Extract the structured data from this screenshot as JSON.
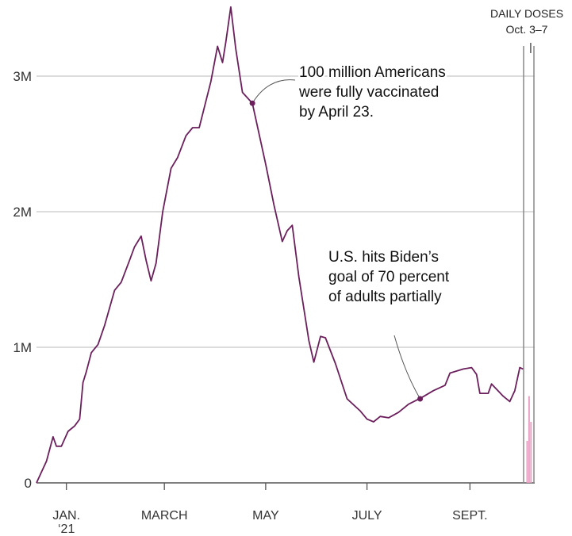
{
  "chart_data": {
    "type": "line",
    "title": "",
    "xlabel": "",
    "ylabel": "",
    "ylim": [
      0,
      3500000
    ],
    "y_ticks": [
      {
        "value": 0,
        "label": "0"
      },
      {
        "value": 1000000,
        "label": "1M"
      },
      {
        "value": 2000000,
        "label": "2M"
      },
      {
        "value": 3000000,
        "label": "3M"
      }
    ],
    "x_ticks": [
      {
        "date": "2021-01-01",
        "label": "JAN.",
        "sublabel": "‘21"
      },
      {
        "date": "2021-03-01",
        "label": "MARCH",
        "sublabel": ""
      },
      {
        "date": "2021-05-01",
        "label": "MAY",
        "sublabel": ""
      },
      {
        "date": "2021-07-01",
        "label": "JULY",
        "sublabel": ""
      },
      {
        "date": "2021-09-01",
        "label": "SEPT.",
        "sublabel": ""
      }
    ],
    "xlim": [
      "2020-12-14",
      "2021-10-10"
    ],
    "grid": true,
    "line_color": "#6b1f5c",
    "bar_color": "#e8a3c4",
    "series": [
      {
        "points": [
          [
            "2020-12-14",
            0
          ],
          [
            "2020-12-17",
            80000
          ],
          [
            "2020-12-20",
            160000
          ],
          [
            "2020-12-24",
            340000
          ],
          [
            "2020-12-26",
            270000
          ],
          [
            "2020-12-29",
            270000
          ],
          [
            "2021-01-02",
            380000
          ],
          [
            "2021-01-06",
            420000
          ],
          [
            "2021-01-09",
            470000
          ],
          [
            "2021-01-11",
            740000
          ],
          [
            "2021-01-13",
            820000
          ],
          [
            "2021-01-16",
            960000
          ],
          [
            "2021-01-20",
            1020000
          ],
          [
            "2021-01-24",
            1160000
          ],
          [
            "2021-01-30",
            1420000
          ],
          [
            "2021-02-03",
            1480000
          ],
          [
            "2021-02-08",
            1640000
          ],
          [
            "2021-02-11",
            1740000
          ],
          [
            "2021-02-15",
            1820000
          ],
          [
            "2021-02-18",
            1640000
          ],
          [
            "2021-02-21",
            1490000
          ],
          [
            "2021-02-24",
            1620000
          ],
          [
            "2021-02-28",
            2000000
          ],
          [
            "2021-03-05",
            2320000
          ],
          [
            "2021-03-09",
            2400000
          ],
          [
            "2021-03-14",
            2560000
          ],
          [
            "2021-03-18",
            2620000
          ],
          [
            "2021-03-22",
            2620000
          ],
          [
            "2021-03-29",
            2960000
          ],
          [
            "2021-04-02",
            3220000
          ],
          [
            "2021-04-05",
            3100000
          ],
          [
            "2021-04-07",
            3250000
          ],
          [
            "2021-04-10",
            3510000
          ],
          [
            "2021-04-13",
            3200000
          ],
          [
            "2021-04-17",
            2880000
          ],
          [
            "2021-04-23",
            2800000
          ],
          [
            "2021-05-01",
            2350000
          ],
          [
            "2021-05-06",
            2050000
          ],
          [
            "2021-05-11",
            1780000
          ],
          [
            "2021-05-14",
            1860000
          ],
          [
            "2021-05-17",
            1900000
          ],
          [
            "2021-05-21",
            1520000
          ],
          [
            "2021-05-27",
            1050000
          ],
          [
            "2021-05-30",
            890000
          ],
          [
            "2021-06-03",
            1080000
          ],
          [
            "2021-06-06",
            1070000
          ],
          [
            "2021-06-12",
            880000
          ],
          [
            "2021-06-19",
            620000
          ],
          [
            "2021-06-27",
            530000
          ],
          [
            "2021-07-01",
            470000
          ],
          [
            "2021-07-05",
            450000
          ],
          [
            "2021-07-09",
            490000
          ],
          [
            "2021-07-14",
            480000
          ],
          [
            "2021-07-20",
            520000
          ],
          [
            "2021-07-26",
            580000
          ],
          [
            "2021-08-03",
            630000
          ],
          [
            "2021-08-10",
            680000
          ],
          [
            "2021-08-17",
            720000
          ],
          [
            "2021-08-20",
            810000
          ],
          [
            "2021-08-28",
            840000
          ],
          [
            "2021-09-02",
            850000
          ],
          [
            "2021-09-05",
            800000
          ],
          [
            "2021-09-07",
            660000
          ],
          [
            "2021-09-12",
            660000
          ],
          [
            "2021-09-14",
            730000
          ],
          [
            "2021-09-21",
            640000
          ],
          [
            "2021-09-25",
            600000
          ],
          [
            "2021-09-28",
            680000
          ],
          [
            "2021-10-01",
            850000
          ],
          [
            "2021-10-03",
            840000
          ]
        ]
      }
    ],
    "daily_doses_panel": {
      "title_line1": "DAILY DOSES",
      "title_line2": "Oct. 3–7",
      "ticks": [
        "|"
      ],
      "bars": [
        {
          "date": "2021-10-03",
          "value": 310000
        },
        {
          "date": "2021-10-04",
          "value": 640000
        },
        {
          "date": "2021-10-05",
          "value": 450000
        },
        {
          "date": "2021-10-06",
          "value": 0
        },
        {
          "date": "2021-10-07",
          "value": 0
        }
      ]
    },
    "annotations": [
      {
        "date": "2021-04-23",
        "value": 2800000,
        "lines": [
          "100 million Americans",
          "were fully vaccinated",
          "by April 23."
        ]
      },
      {
        "date": "2021-08-02",
        "value": 620000,
        "lines": [
          "U.S. hits Biden’s",
          "goal of 70 percent",
          "of adults partially"
        ]
      }
    ]
  }
}
